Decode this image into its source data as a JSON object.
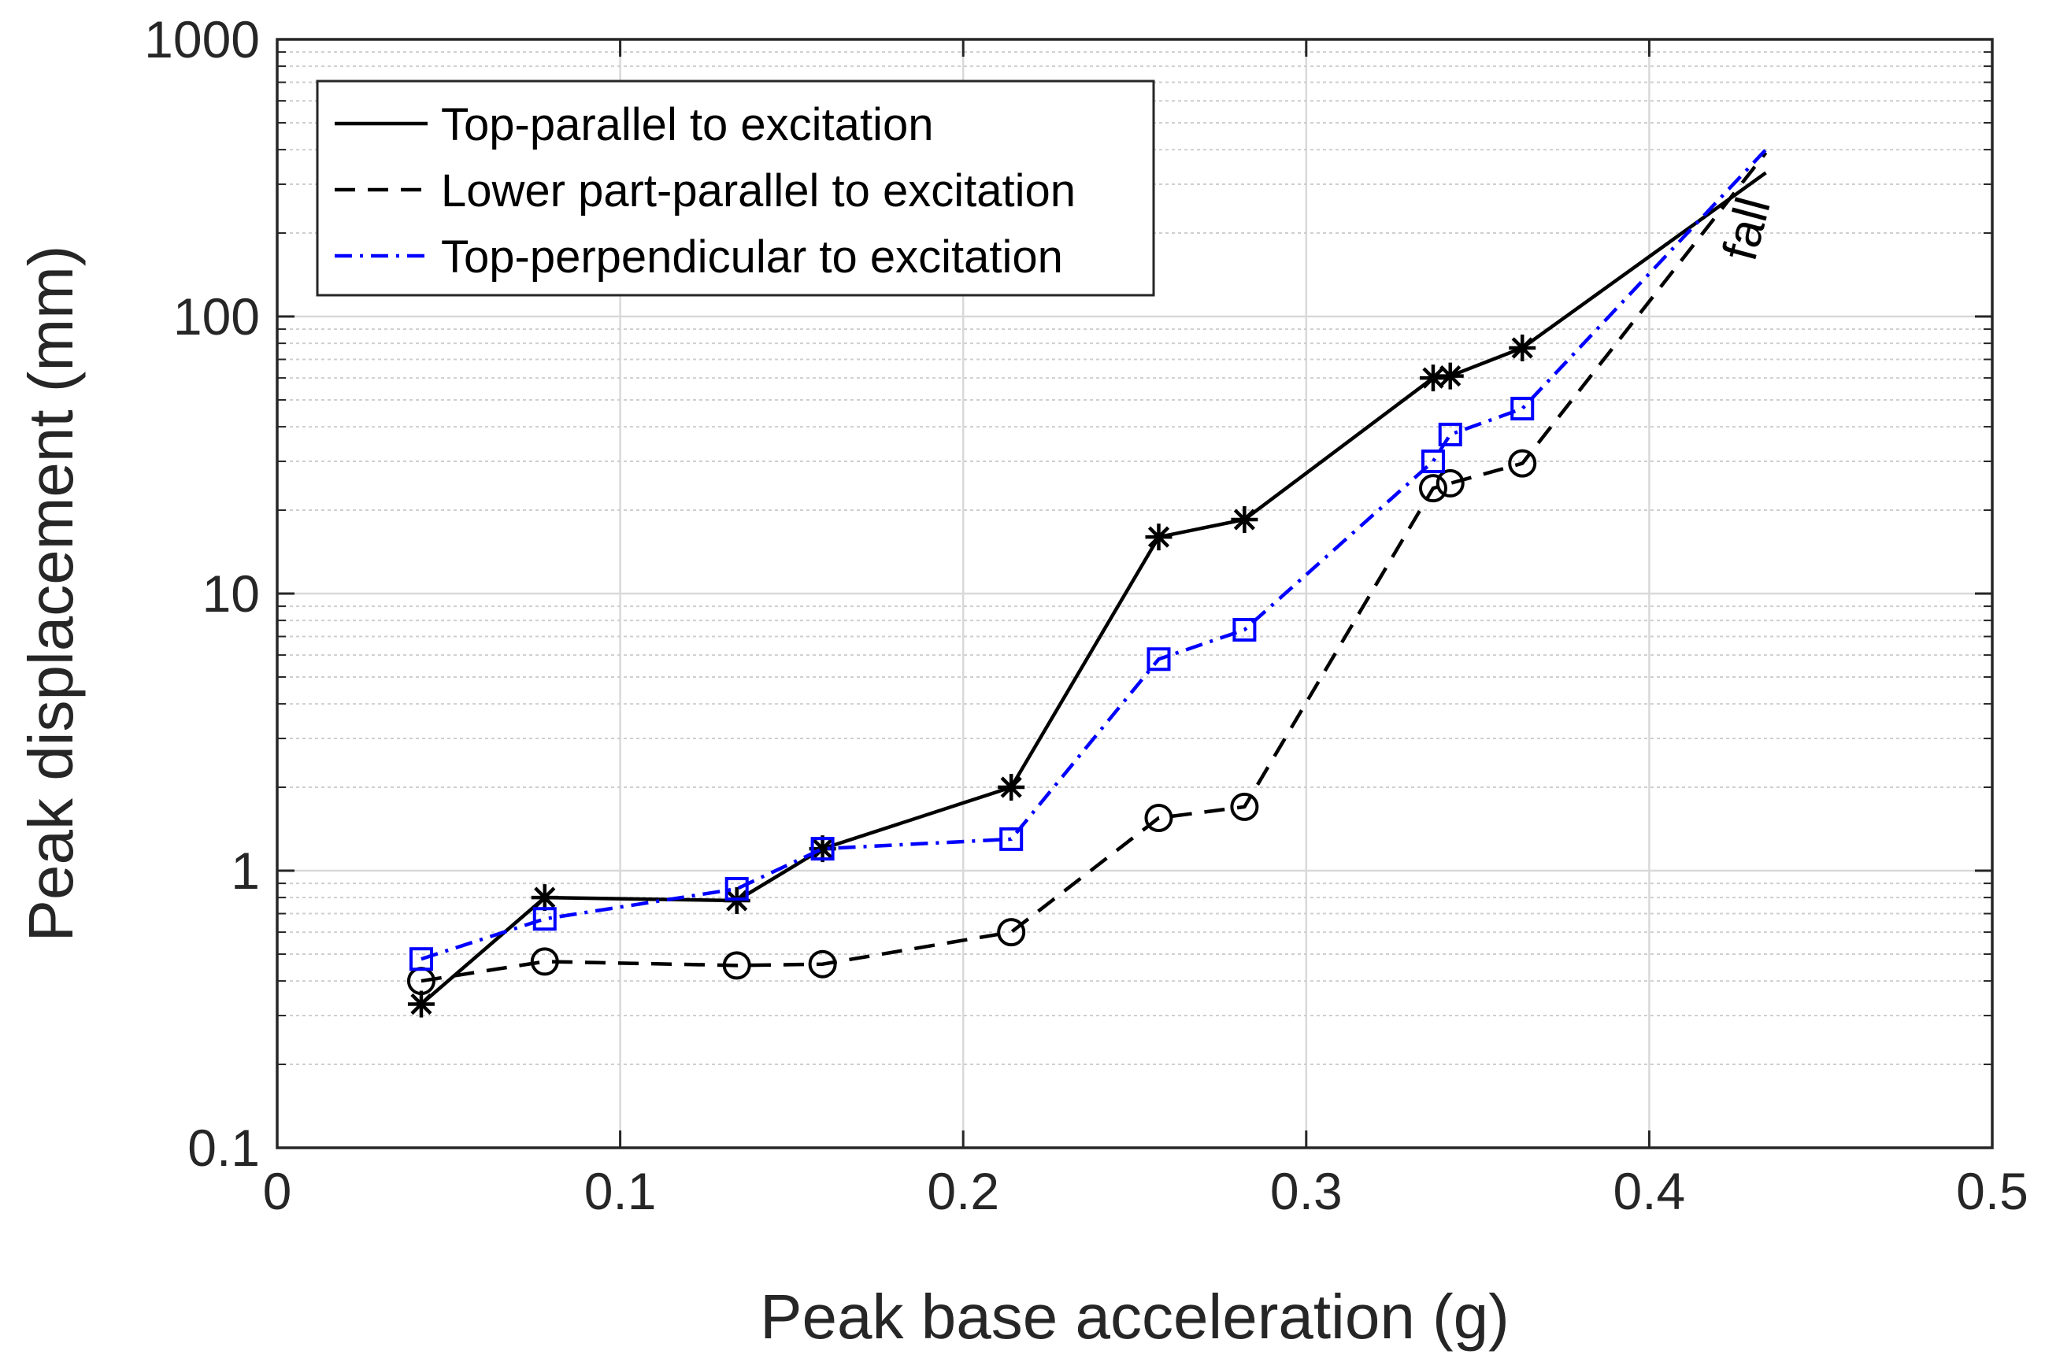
{
  "chart_data": {
    "type": "line",
    "title": "",
    "xlabel": "Peak base acceleration (g)",
    "ylabel": "Peak displacement (mm)",
    "xscale": "linear",
    "yscale": "log",
    "xlim": [
      0,
      0.5
    ],
    "ylim": [
      0.1,
      1000
    ],
    "xticks": [
      0,
      0.1,
      0.2,
      0.3,
      0.4,
      0.5
    ],
    "xtick_labels": [
      "0",
      "0.1",
      "0.2",
      "0.3",
      "0.4",
      "0.5"
    ],
    "yticks": [
      0.1,
      1,
      10,
      100,
      1000
    ],
    "ytick_labels": [
      "0.1",
      "1",
      "10",
      "100",
      "1000"
    ],
    "grid": true,
    "legend_position": "top-left",
    "series": [
      {
        "name": "Top-parallel to excitation",
        "color": "#000000",
        "line_style": "solid",
        "marker": "asterisk",
        "points": [
          {
            "x": 0.042,
            "y": 0.33
          },
          {
            "x": 0.078,
            "y": 0.8
          },
          {
            "x": 0.134,
            "y": 0.78
          },
          {
            "x": 0.159,
            "y": 1.2
          },
          {
            "x": 0.214,
            "y": 2.0
          },
          {
            "x": 0.257,
            "y": 16
          },
          {
            "x": 0.282,
            "y": 18.5
          },
          {
            "x": 0.337,
            "y": 60
          },
          {
            "x": 0.342,
            "y": 61
          },
          {
            "x": 0.363,
            "y": 77
          },
          {
            "x": 0.434,
            "y": 330,
            "marker": false
          }
        ]
      },
      {
        "name": "Lower part-parallel to excitation",
        "color": "#000000",
        "line_style": "dashed",
        "marker": "circle",
        "points": [
          {
            "x": 0.042,
            "y": 0.4
          },
          {
            "x": 0.078,
            "y": 0.47
          },
          {
            "x": 0.134,
            "y": 0.455
          },
          {
            "x": 0.159,
            "y": 0.46
          },
          {
            "x": 0.214,
            "y": 0.6
          },
          {
            "x": 0.257,
            "y": 1.55
          },
          {
            "x": 0.282,
            "y": 1.7
          },
          {
            "x": 0.337,
            "y": 24
          },
          {
            "x": 0.342,
            "y": 25
          },
          {
            "x": 0.363,
            "y": 29.5
          },
          {
            "x": 0.434,
            "y": 390,
            "marker": false
          }
        ]
      },
      {
        "name": "Top-perpendicular to excitation",
        "color": "#0000ff",
        "line_style": "dashdot",
        "marker": "square",
        "points": [
          {
            "x": 0.042,
            "y": 0.48
          },
          {
            "x": 0.078,
            "y": 0.67
          },
          {
            "x": 0.134,
            "y": 0.86
          },
          {
            "x": 0.159,
            "y": 1.2
          },
          {
            "x": 0.214,
            "y": 1.3
          },
          {
            "x": 0.257,
            "y": 5.8
          },
          {
            "x": 0.282,
            "y": 7.4
          },
          {
            "x": 0.337,
            "y": 30
          },
          {
            "x": 0.342,
            "y": 37.5
          },
          {
            "x": 0.363,
            "y": 46.5
          },
          {
            "x": 0.434,
            "y": 400,
            "marker": false
          }
        ]
      }
    ],
    "annotations": [
      {
        "text": "fall",
        "x": 0.433,
        "y": 200,
        "rotation_deg": -75
      }
    ]
  }
}
